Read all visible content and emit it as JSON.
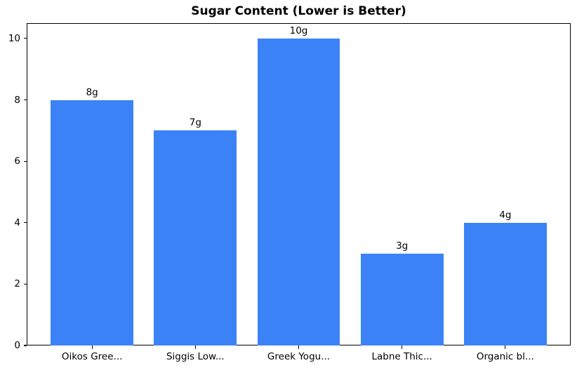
{
  "chart_data": {
    "type": "bar",
    "title": "Sugar Content (Lower is Better)",
    "categories": [
      "Oikos Gree...",
      "Siggis Low...",
      "Greek Yogu...",
      "Labne Thic...",
      "Organic bl..."
    ],
    "values": [
      8,
      7,
      10,
      3,
      4
    ],
    "bar_labels": [
      "8g",
      "7g",
      "10g",
      "3g",
      "4g"
    ],
    "xlabel": "",
    "ylabel": "",
    "yticks": [
      0,
      2,
      4,
      6,
      8,
      10
    ],
    "ylim": [
      0,
      10.5
    ],
    "xlim": [
      -0.633,
      4.633
    ],
    "bar_width_fraction": 0.8,
    "grid": false,
    "legend_position": "none",
    "colors": {
      "bar": "#3b82f6",
      "axis": "#000000",
      "text": "#000000",
      "background": "#ffffff"
    }
  }
}
